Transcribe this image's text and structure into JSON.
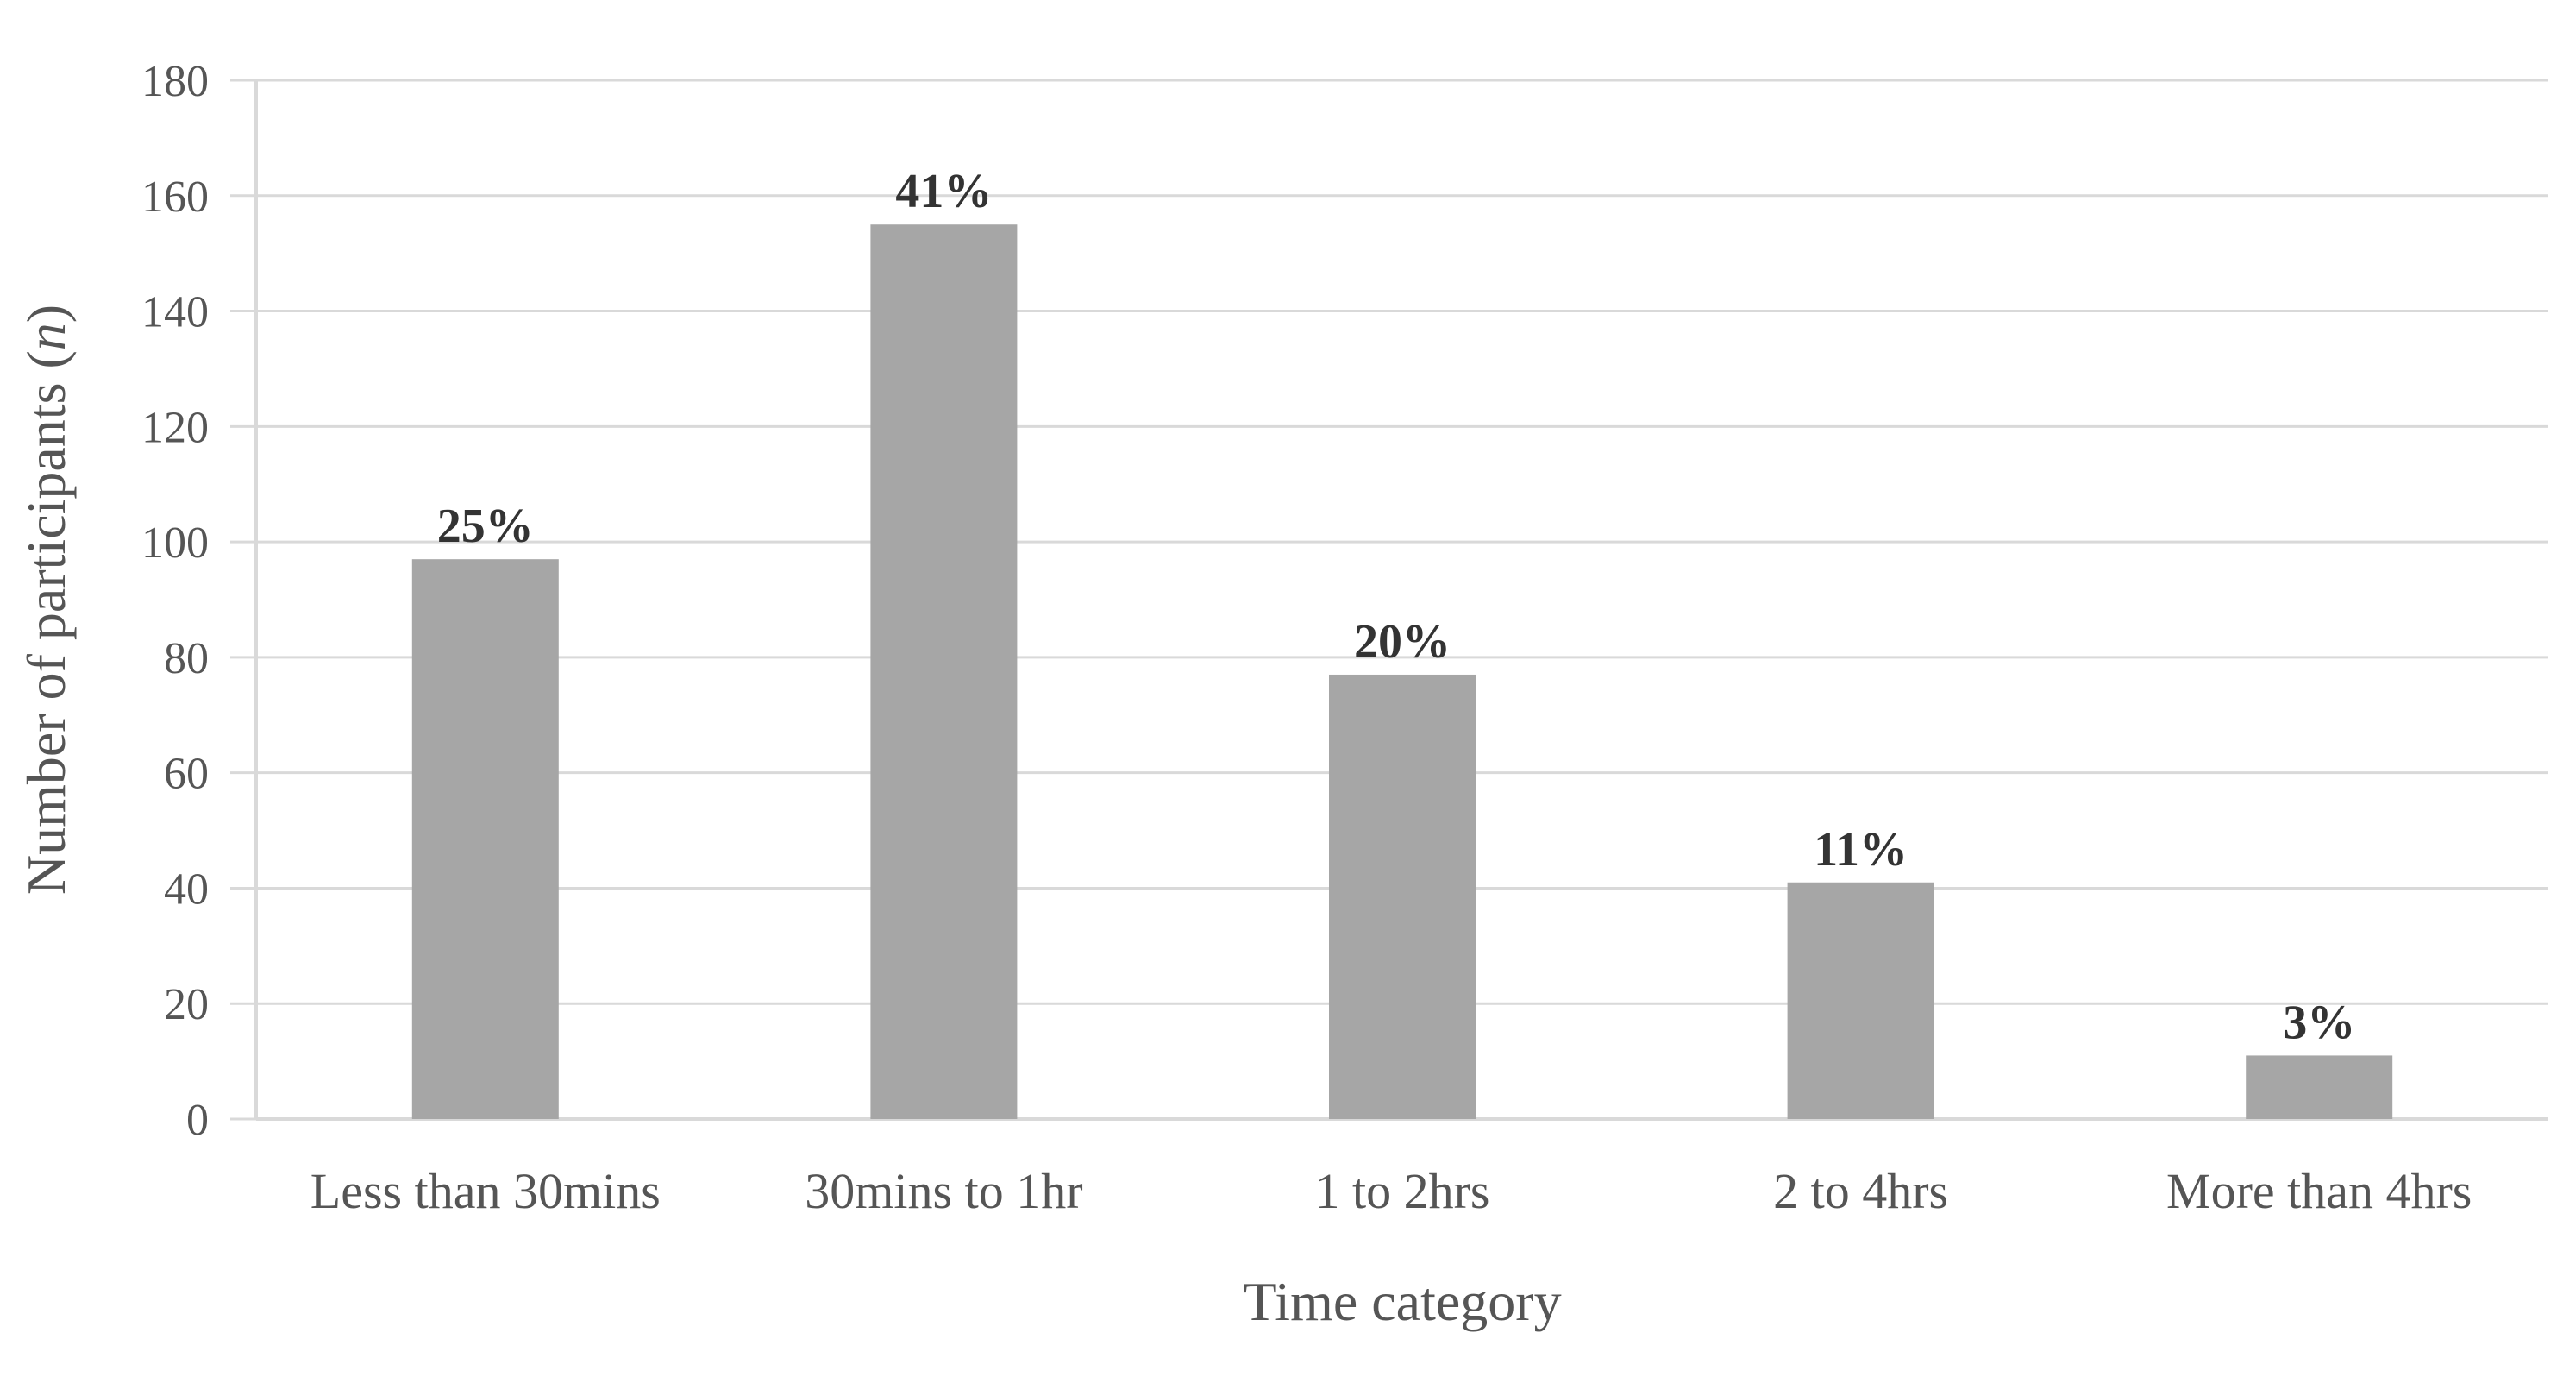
{
  "chart_data": {
    "type": "bar",
    "categories": [
      "Less than 30mins",
      "30mins to 1hr",
      "1 to 2hrs",
      "2 to 4hrs",
      "More than 4hrs"
    ],
    "values": [
      97,
      155,
      77,
      41,
      11
    ],
    "data_labels": [
      "25%",
      "41%",
      "20%",
      "11%",
      "3%"
    ],
    "xlabel": "Time category",
    "ylabel_prefix": "Number of participants (",
    "ylabel_var": "n",
    "ylabel_suffix": ")",
    "ylim": [
      0,
      180
    ],
    "yticks": [
      0,
      20,
      40,
      60,
      80,
      100,
      120,
      140,
      160,
      180
    ],
    "grid": true,
    "legend": "none",
    "bar_color": "#a6a6a6"
  }
}
